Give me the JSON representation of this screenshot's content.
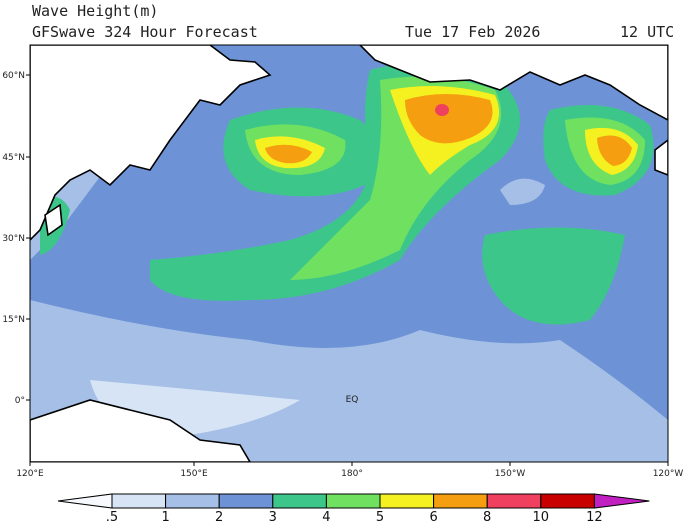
{
  "header": {
    "title": "Wave Height(m)",
    "subtitle": "GFSwave 324 Hour Forecast",
    "date": "Tue 17 Feb 2026",
    "time": "12 UTC"
  },
  "map": {
    "lat_labels": [
      "60°N",
      "45°N",
      "30°N",
      "15°N",
      "0°"
    ],
    "lon_labels": [
      "120°E",
      "150°E",
      "180°",
      "150°W",
      "120°W"
    ],
    "equator_label": "EQ"
  },
  "colorbar": {
    "levels": [
      {
        "value": 0.5,
        "label": ".5"
      },
      1,
      2,
      3,
      4,
      5,
      6,
      8,
      10,
      12
    ],
    "colors": [
      "#f6f9fd",
      "#d6e4f5",
      "#a5bfe6",
      "#6d93d6",
      "#3cc68a",
      "#6fe060",
      "#f5f020",
      "#f59e10",
      "#f04060",
      "#c80000",
      "#c020c0"
    ]
  }
}
